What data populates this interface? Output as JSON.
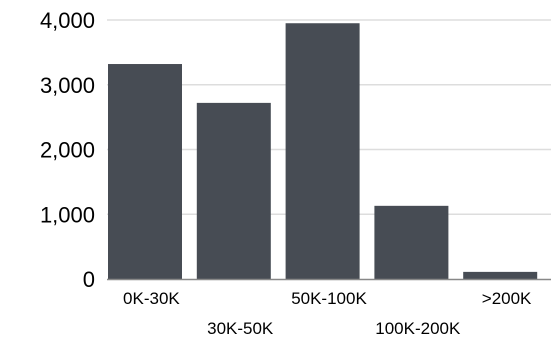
{
  "chart_data": {
    "type": "bar",
    "categories": [
      "0K-30K",
      "30K-50K",
      "50K-100K",
      "100K-200K",
      ">200K"
    ],
    "values": [
      3320,
      2720,
      3950,
      1130,
      110
    ],
    "ylim": [
      0,
      4000
    ],
    "yticks": [
      0,
      1000,
      2000,
      3000,
      4000
    ],
    "ytick_labels": [
      "0",
      "1,000",
      "2,000",
      "3,000",
      "4,000"
    ],
    "grid": true,
    "legend": "none",
    "colors": {
      "bar": "#474c54",
      "grid": "#dddddd",
      "axis": "#888888"
    }
  }
}
